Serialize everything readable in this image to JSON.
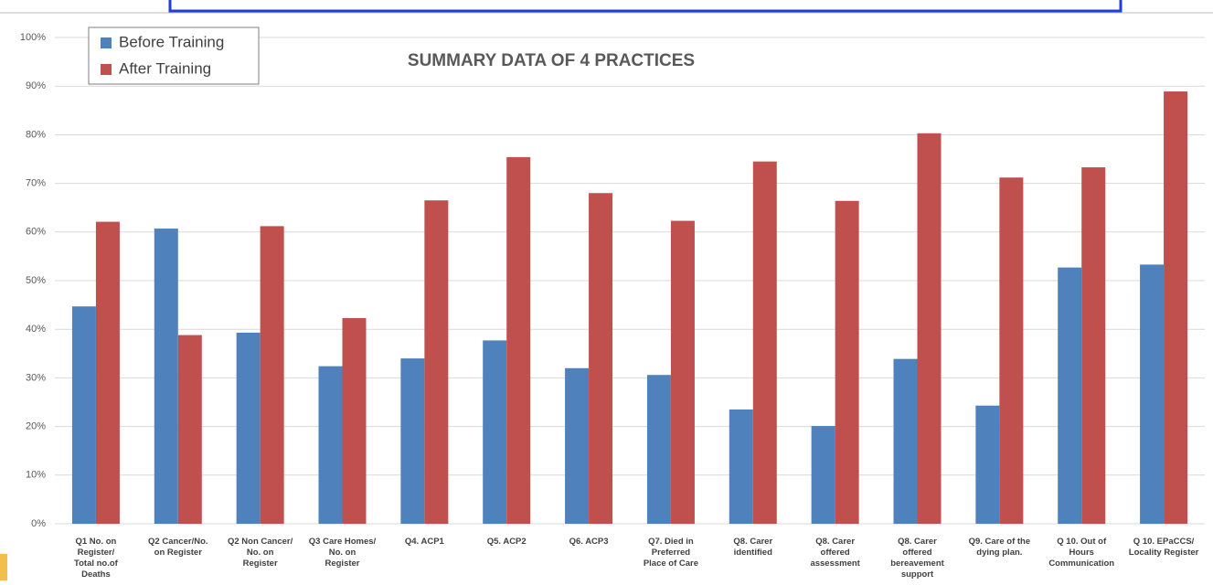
{
  "chart_data": {
    "type": "bar",
    "title": "SUMMARY DATA OF 4 PRACTICES",
    "categories": [
      "Q1  No. on\nRegister/\nTotal no.of\nDeaths",
      "Q2 Cancer/No.\non Register",
      "Q2 Non Cancer/\nNo. on\nRegister",
      "Q3 Care Homes/\nNo. on\nRegister",
      "Q4.  ACP1",
      "Q5.  ACP2",
      "Q6.  ACP3",
      "Q7. Died in\nPreferred\nPlace of Care",
      "Q8. Carer\nidentified",
      "Q8. Carer\noffered\nassessment",
      "Q8. Carer\noffered\nbereavement\nsupport",
      "Q9. Care of the\ndying plan.",
      "Q 10. Out of\nHours\nCommunication",
      "Q 10. EPaCCS/\nLocality Register"
    ],
    "series": [
      {
        "name": "Before Training",
        "color": "#4f81bd",
        "values": [
          44.7,
          60.7,
          39.3,
          32.4,
          34.0,
          37.7,
          32.0,
          30.6,
          23.5,
          20.1,
          33.9,
          24.3,
          52.7,
          53.3
        ]
      },
      {
        "name": "After Training",
        "color": "#c0504d",
        "values": [
          62.1,
          38.8,
          61.2,
          42.3,
          66.5,
          75.4,
          68.0,
          62.3,
          74.5,
          66.4,
          80.3,
          71.2,
          73.3,
          88.9
        ]
      }
    ],
    "ylim": [
      0,
      100
    ],
    "yticks": [
      {
        "value": 0,
        "label": "0%"
      },
      {
        "value": 10,
        "label": "10%"
      },
      {
        "value": 20,
        "label": "20%"
      },
      {
        "value": 30,
        "label": "30%"
      },
      {
        "value": 40,
        "label": "40%"
      },
      {
        "value": 50,
        "label": "50%"
      },
      {
        "value": 60,
        "label": "60%"
      },
      {
        "value": 70,
        "label": "70%"
      },
      {
        "value": 80,
        "label": "80%"
      },
      {
        "value": 90,
        "label": "90%"
      },
      {
        "value": 100,
        "label": "100%"
      }
    ],
    "grid": true,
    "legend": "top-left"
  }
}
